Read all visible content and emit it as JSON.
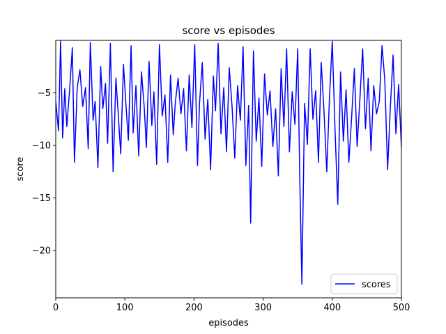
{
  "chart_data": {
    "type": "line",
    "title": "score vs episodes",
    "xlabel": "episodes",
    "ylabel": "score",
    "xlim": [
      0,
      500
    ],
    "ylim": [
      -24.5,
      0
    ],
    "xticks": [
      0,
      100,
      200,
      300,
      400,
      500
    ],
    "xtick_labels": [
      "0",
      "100",
      "200",
      "300",
      "400",
      "500"
    ],
    "yticks": [
      -5,
      -10,
      -15,
      -20
    ],
    "ytick_labels": [
      "−5",
      "−10",
      "−15",
      "−20"
    ],
    "grid": false,
    "legend_position": "lower-right",
    "series": [
      {
        "name": "scores",
        "color": "#0000ff",
        "x": [
          0,
          4,
          7,
          10,
          13,
          16,
          20,
          24,
          27,
          31,
          35,
          39,
          43,
          47,
          50,
          54,
          57,
          61,
          65,
          68,
          72,
          75,
          79,
          83,
          87,
          90,
          94,
          98,
          101,
          105,
          109,
          112,
          116,
          120,
          124,
          128,
          131,
          135,
          139,
          142,
          146,
          150,
          154,
          158,
          162,
          166,
          170,
          173,
          177,
          181,
          185,
          189,
          193,
          197,
          201,
          205,
          208,
          212,
          216,
          220,
          224,
          228,
          231,
          235,
          239,
          243,
          247,
          251,
          255,
          259,
          263,
          267,
          271,
          275,
          279,
          282,
          286,
          290,
          294,
          298,
          302,
          306,
          310,
          314,
          318,
          322,
          326,
          330,
          334,
          338,
          342,
          346,
          350,
          353,
          356,
          360,
          364,
          368,
          372,
          376,
          380,
          384,
          388,
          392,
          396,
          400,
          404,
          408,
          412,
          416,
          420,
          424,
          428,
          432,
          436,
          440,
          444,
          448,
          452,
          456,
          460,
          464,
          468,
          472,
          476,
          480,
          484,
          488,
          492,
          496,
          500
        ],
        "values": [
          -5.8,
          -8.6,
          -0.1,
          -9.3,
          -4.6,
          -8.2,
          -4.8,
          -0.7,
          -11.6,
          -4.5,
          -2.8,
          -6.3,
          -4.5,
          -10.3,
          -0.2,
          -7.6,
          -5.8,
          -12.1,
          -2.5,
          -6.5,
          -4.1,
          -9.8,
          -0.3,
          -12.5,
          -3.6,
          -6.6,
          -10.8,
          -2.3,
          -5.6,
          -9.5,
          -0.5,
          -8.8,
          -4.3,
          -11.0,
          -3.0,
          -6.4,
          -10.2,
          -2.0,
          -8.1,
          -4.9,
          -11.8,
          -0.4,
          -7.2,
          -5.2,
          -11.6,
          -3.3,
          -9.0,
          -5.9,
          -3.6,
          -7.0,
          -4.6,
          -10.5,
          -3.3,
          -8.3,
          -0.4,
          -11.9,
          -6.0,
          -2.1,
          -9.4,
          -5.6,
          -12.3,
          -3.4,
          -6.7,
          -0.3,
          -8.9,
          -4.5,
          -10.6,
          -2.6,
          -6.3,
          -11.2,
          -4.3,
          -7.6,
          -0.6,
          -11.9,
          -6.2,
          -17.4,
          -1.0,
          -9.6,
          -5.5,
          -12.0,
          -3.2,
          -7.1,
          -4.8,
          -10.1,
          -6.5,
          -12.9,
          -2.7,
          -8.2,
          -0.8,
          -10.6,
          -4.9,
          -8.0,
          -0.8,
          -13.2,
          -23.2,
          -6.0,
          -9.9,
          -0.8,
          -7.5,
          -4.8,
          -11.6,
          -2.1,
          -6.7,
          -12.5,
          -5.4,
          -0.1,
          -8.6,
          -15.6,
          -3.0,
          -9.6,
          -4.7,
          -11.6,
          -7.3,
          -2.7,
          -10.1,
          -5.5,
          -0.8,
          -8.4,
          -3.6,
          -10.5,
          -4.3,
          -7.0,
          -5.8,
          -0.5,
          -3.8,
          -12.3,
          -6.4,
          -1.4,
          -8.9,
          -4.2,
          -10.2
        ]
      }
    ]
  }
}
